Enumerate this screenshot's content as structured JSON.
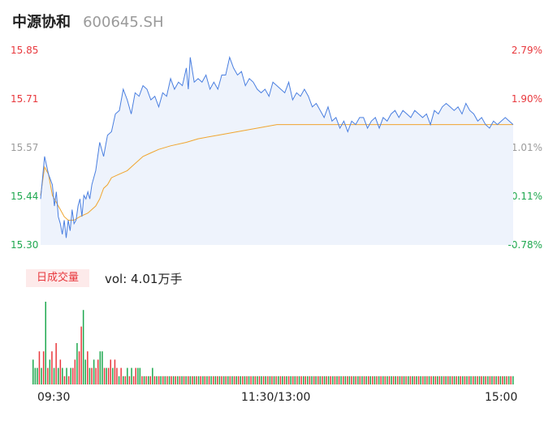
{
  "header": {
    "name": "中源协和",
    "code": "600645.SH"
  },
  "colors": {
    "price_line": "#4a7fe0",
    "avg_line": "#f0a52e",
    "area_fill": "#eef3fc",
    "up": "#e8383d",
    "down": "#1fa84f",
    "neutral": "#9b9b9b"
  },
  "y_axis": {
    "left_labels": [
      "15.85",
      "15.71",
      "15.57",
      "15.44",
      "15.30"
    ],
    "right_labels": [
      "2.79%",
      "1.90%",
      "1.01%",
      "0.11%",
      "-0.78%"
    ]
  },
  "volume": {
    "tag": "日成交量",
    "summary": "vol: 4.01万手"
  },
  "time_axis": [
    "09:30",
    "11:30/13:00",
    "15:00"
  ],
  "chart_data": {
    "type": "line",
    "xlabel": "",
    "ylabel": "",
    "ylim": [
      15.3,
      15.85
    ],
    "prev_close": 15.42,
    "x_range": [
      0,
      240
    ],
    "price": [
      [
        0,
        15.43
      ],
      [
        2,
        15.55
      ],
      [
        4,
        15.5
      ],
      [
        6,
        15.47
      ],
      [
        7,
        15.41
      ],
      [
        8,
        15.45
      ],
      [
        9,
        15.38
      ],
      [
        10,
        15.36
      ],
      [
        11,
        15.33
      ],
      [
        12,
        15.37
      ],
      [
        13,
        15.32
      ],
      [
        14,
        15.37
      ],
      [
        15,
        15.34
      ],
      [
        16,
        15.4
      ],
      [
        17,
        15.36
      ],
      [
        18,
        15.37
      ],
      [
        19,
        15.41
      ],
      [
        20,
        15.43
      ],
      [
        21,
        15.38
      ],
      [
        22,
        15.44
      ],
      [
        23,
        15.43
      ],
      [
        24,
        15.45
      ],
      [
        25,
        15.43
      ],
      [
        26,
        15.47
      ],
      [
        28,
        15.51
      ],
      [
        30,
        15.59
      ],
      [
        32,
        15.55
      ],
      [
        34,
        15.61
      ],
      [
        36,
        15.62
      ],
      [
        38,
        15.67
      ],
      [
        40,
        15.68
      ],
      [
        42,
        15.74
      ],
      [
        44,
        15.71
      ],
      [
        46,
        15.67
      ],
      [
        48,
        15.73
      ],
      [
        50,
        15.72
      ],
      [
        52,
        15.75
      ],
      [
        54,
        15.74
      ],
      [
        56,
        15.71
      ],
      [
        58,
        15.72
      ],
      [
        60,
        15.69
      ],
      [
        62,
        15.73
      ],
      [
        64,
        15.72
      ],
      [
        66,
        15.77
      ],
      [
        68,
        15.74
      ],
      [
        70,
        15.76
      ],
      [
        72,
        15.75
      ],
      [
        74,
        15.8
      ],
      [
        75,
        15.74
      ],
      [
        76,
        15.83
      ],
      [
        78,
        15.76
      ],
      [
        80,
        15.77
      ],
      [
        82,
        15.76
      ],
      [
        84,
        15.78
      ],
      [
        86,
        15.74
      ],
      [
        88,
        15.76
      ],
      [
        90,
        15.74
      ],
      [
        92,
        15.78
      ],
      [
        94,
        15.78
      ],
      [
        96,
        15.83
      ],
      [
        98,
        15.8
      ],
      [
        100,
        15.78
      ],
      [
        102,
        15.79
      ],
      [
        104,
        15.75
      ],
      [
        106,
        15.77
      ],
      [
        108,
        15.76
      ],
      [
        110,
        15.74
      ],
      [
        112,
        15.73
      ],
      [
        114,
        15.74
      ],
      [
        116,
        15.72
      ],
      [
        118,
        15.76
      ],
      [
        120,
        15.75
      ],
      [
        122,
        15.74
      ],
      [
        124,
        15.73
      ],
      [
        126,
        15.76
      ],
      [
        128,
        15.71
      ],
      [
        130,
        15.73
      ],
      [
        132,
        15.72
      ],
      [
        134,
        15.74
      ],
      [
        136,
        15.72
      ],
      [
        138,
        15.69
      ],
      [
        140,
        15.7
      ],
      [
        142,
        15.68
      ],
      [
        144,
        15.66
      ],
      [
        146,
        15.69
      ],
      [
        148,
        15.65
      ],
      [
        150,
        15.66
      ],
      [
        152,
        15.63
      ],
      [
        154,
        15.65
      ],
      [
        156,
        15.62
      ],
      [
        158,
        15.65
      ],
      [
        160,
        15.64
      ],
      [
        162,
        15.66
      ],
      [
        164,
        15.66
      ],
      [
        166,
        15.63
      ],
      [
        168,
        15.65
      ],
      [
        170,
        15.66
      ],
      [
        172,
        15.63
      ],
      [
        174,
        15.66
      ],
      [
        176,
        15.65
      ],
      [
        178,
        15.67
      ],
      [
        180,
        15.68
      ],
      [
        182,
        15.66
      ],
      [
        184,
        15.68
      ],
      [
        186,
        15.67
      ],
      [
        188,
        15.66
      ],
      [
        190,
        15.68
      ],
      [
        192,
        15.67
      ],
      [
        194,
        15.66
      ],
      [
        196,
        15.67
      ],
      [
        198,
        15.64
      ],
      [
        200,
        15.68
      ],
      [
        202,
        15.67
      ],
      [
        204,
        15.69
      ],
      [
        206,
        15.7
      ],
      [
        208,
        15.69
      ],
      [
        210,
        15.68
      ],
      [
        212,
        15.69
      ],
      [
        214,
        15.67
      ],
      [
        216,
        15.7
      ],
      [
        218,
        15.68
      ],
      [
        220,
        15.67
      ],
      [
        222,
        15.65
      ],
      [
        224,
        15.66
      ],
      [
        226,
        15.64
      ],
      [
        228,
        15.63
      ],
      [
        230,
        15.65
      ],
      [
        232,
        15.64
      ],
      [
        234,
        15.65
      ],
      [
        236,
        15.66
      ],
      [
        238,
        15.65
      ],
      [
        240,
        15.64
      ]
    ],
    "average": [
      [
        0,
        15.44
      ],
      [
        2,
        15.52
      ],
      [
        4,
        15.5
      ],
      [
        5,
        15.47
      ],
      [
        6,
        15.44
      ],
      [
        8,
        15.42
      ],
      [
        10,
        15.4
      ],
      [
        12,
        15.38
      ],
      [
        14,
        15.37
      ],
      [
        17,
        15.37
      ],
      [
        20,
        15.38
      ],
      [
        24,
        15.39
      ],
      [
        28,
        15.41
      ],
      [
        30,
        15.43
      ],
      [
        32,
        15.46
      ],
      [
        34,
        15.47
      ],
      [
        36,
        15.49
      ],
      [
        40,
        15.5
      ],
      [
        44,
        15.51
      ],
      [
        48,
        15.53
      ],
      [
        50,
        15.54
      ],
      [
        52,
        15.55
      ],
      [
        56,
        15.56
      ],
      [
        60,
        15.57
      ],
      [
        66,
        15.58
      ],
      [
        74,
        15.59
      ],
      [
        80,
        15.6
      ],
      [
        90,
        15.61
      ],
      [
        100,
        15.62
      ],
      [
        110,
        15.63
      ],
      [
        120,
        15.64
      ],
      [
        240,
        15.64
      ]
    ],
    "volume_bars": [
      [
        3,
        "down"
      ],
      [
        2,
        "down"
      ],
      [
        2,
        "down"
      ],
      [
        4,
        "up"
      ],
      [
        2,
        "down"
      ],
      [
        4,
        "up"
      ],
      [
        10,
        "down"
      ],
      [
        2,
        "up"
      ],
      [
        3,
        "down"
      ],
      [
        4,
        "up"
      ],
      [
        2,
        "down"
      ],
      [
        5,
        "up"
      ],
      [
        2,
        "down"
      ],
      [
        3,
        "up"
      ],
      [
        2,
        "down"
      ],
      [
        1,
        "up"
      ],
      [
        2,
        "down"
      ],
      [
        1,
        "up"
      ],
      [
        2,
        "down"
      ],
      [
        2,
        "up"
      ],
      [
        3,
        "up"
      ],
      [
        5,
        "down"
      ],
      [
        4,
        "up"
      ],
      [
        7,
        "up"
      ],
      [
        9,
        "down"
      ],
      [
        3,
        "down"
      ],
      [
        4,
        "up"
      ],
      [
        2,
        "down"
      ],
      [
        2,
        "up"
      ],
      [
        3,
        "down"
      ],
      [
        2,
        "up"
      ],
      [
        3,
        "up"
      ],
      [
        4,
        "down"
      ],
      [
        4,
        "down"
      ],
      [
        2,
        "up"
      ],
      [
        2,
        "down"
      ],
      [
        2,
        "up"
      ],
      [
        3,
        "up"
      ],
      [
        2,
        "down"
      ],
      [
        3,
        "up"
      ],
      [
        2,
        "up"
      ],
      [
        1,
        "down"
      ],
      [
        2,
        "up"
      ],
      [
        1,
        "down"
      ],
      [
        1,
        "up"
      ],
      [
        2,
        "down"
      ],
      [
        1,
        "up"
      ],
      [
        2,
        "down"
      ],
      [
        1,
        "up"
      ],
      [
        2,
        "up"
      ],
      [
        2,
        "down"
      ],
      [
        2,
        "down"
      ],
      [
        1,
        "up"
      ],
      [
        1,
        "down"
      ],
      [
        1,
        "up"
      ],
      [
        1,
        "down"
      ],
      [
        1,
        "up"
      ],
      [
        2,
        "down"
      ],
      [
        1,
        "up"
      ],
      [
        1,
        "down"
      ],
      [
        1,
        "up"
      ],
      [
        1,
        "down"
      ],
      [
        1,
        "up"
      ],
      [
        1,
        "down"
      ],
      [
        1,
        "up"
      ],
      [
        1,
        "down"
      ],
      [
        1,
        "up"
      ],
      [
        1,
        "down"
      ],
      [
        1,
        "up"
      ],
      [
        1,
        "down"
      ],
      [
        1,
        "up"
      ],
      [
        1,
        "down"
      ],
      [
        1,
        "up"
      ],
      [
        1,
        "down"
      ],
      [
        1,
        "up"
      ],
      [
        1,
        "down"
      ],
      [
        1,
        "up"
      ],
      [
        1,
        "down"
      ],
      [
        1,
        "up"
      ],
      [
        1,
        "down"
      ],
      [
        1,
        "up"
      ],
      [
        1,
        "down"
      ],
      [
        1,
        "up"
      ],
      [
        1,
        "down"
      ],
      [
        1,
        "up"
      ],
      [
        1,
        "down"
      ],
      [
        1,
        "up"
      ],
      [
        1,
        "down"
      ],
      [
        1,
        "up"
      ],
      [
        1,
        "down"
      ],
      [
        1,
        "up"
      ],
      [
        1,
        "down"
      ],
      [
        1,
        "up"
      ],
      [
        1,
        "down"
      ],
      [
        1,
        "up"
      ],
      [
        1,
        "down"
      ],
      [
        1,
        "up"
      ],
      [
        1,
        "down"
      ],
      [
        1,
        "up"
      ],
      [
        1,
        "down"
      ],
      [
        1,
        "up"
      ],
      [
        1,
        "down"
      ],
      [
        1,
        "up"
      ],
      [
        1,
        "down"
      ],
      [
        1,
        "up"
      ],
      [
        1,
        "down"
      ],
      [
        1,
        "up"
      ],
      [
        1,
        "down"
      ],
      [
        1,
        "up"
      ],
      [
        1,
        "down"
      ],
      [
        1,
        "up"
      ],
      [
        1,
        "down"
      ],
      [
        1,
        "up"
      ],
      [
        1,
        "down"
      ],
      [
        1,
        "up"
      ],
      [
        1,
        "down"
      ],
      [
        1,
        "up"
      ],
      [
        1,
        "down"
      ],
      [
        1,
        "up"
      ],
      [
        1,
        "down"
      ],
      [
        1,
        "up"
      ],
      [
        1,
        "down"
      ],
      [
        1,
        "up"
      ],
      [
        1,
        "down"
      ],
      [
        1,
        "up"
      ],
      [
        1,
        "down"
      ],
      [
        1,
        "up"
      ],
      [
        1,
        "down"
      ],
      [
        1,
        "up"
      ],
      [
        1,
        "down"
      ],
      [
        1,
        "up"
      ],
      [
        1,
        "down"
      ],
      [
        1,
        "up"
      ],
      [
        1,
        "down"
      ],
      [
        1,
        "up"
      ],
      [
        1,
        "down"
      ],
      [
        1,
        "up"
      ],
      [
        1,
        "down"
      ],
      [
        1,
        "up"
      ],
      [
        1,
        "down"
      ],
      [
        1,
        "up"
      ],
      [
        1,
        "down"
      ],
      [
        1,
        "up"
      ],
      [
        1,
        "down"
      ],
      [
        1,
        "up"
      ],
      [
        1,
        "down"
      ],
      [
        1,
        "up"
      ],
      [
        1,
        "down"
      ],
      [
        1,
        "up"
      ],
      [
        1,
        "down"
      ],
      [
        1,
        "up"
      ],
      [
        1,
        "down"
      ],
      [
        1,
        "up"
      ],
      [
        1,
        "down"
      ],
      [
        1,
        "up"
      ],
      [
        1,
        "down"
      ],
      [
        1,
        "up"
      ],
      [
        1,
        "down"
      ],
      [
        1,
        "up"
      ],
      [
        1,
        "down"
      ],
      [
        1,
        "up"
      ],
      [
        1,
        "down"
      ],
      [
        1,
        "up"
      ],
      [
        1,
        "down"
      ],
      [
        1,
        "up"
      ],
      [
        1,
        "down"
      ],
      [
        1,
        "up"
      ],
      [
        1,
        "down"
      ],
      [
        1,
        "up"
      ],
      [
        1,
        "down"
      ],
      [
        1,
        "up"
      ],
      [
        1,
        "down"
      ],
      [
        1,
        "up"
      ],
      [
        1,
        "down"
      ],
      [
        1,
        "up"
      ],
      [
        1,
        "down"
      ],
      [
        1,
        "up"
      ],
      [
        1,
        "down"
      ],
      [
        1,
        "up"
      ],
      [
        1,
        "down"
      ],
      [
        1,
        "up"
      ],
      [
        1,
        "down"
      ],
      [
        1,
        "up"
      ],
      [
        1,
        "down"
      ],
      [
        1,
        "up"
      ],
      [
        1,
        "down"
      ],
      [
        1,
        "up"
      ],
      [
        1,
        "down"
      ],
      [
        1,
        "up"
      ],
      [
        1,
        "down"
      ],
      [
        1,
        "up"
      ],
      [
        1,
        "down"
      ],
      [
        1,
        "up"
      ],
      [
        1,
        "down"
      ],
      [
        1,
        "up"
      ],
      [
        1,
        "down"
      ],
      [
        1,
        "up"
      ],
      [
        1,
        "down"
      ],
      [
        1,
        "up"
      ],
      [
        1,
        "down"
      ],
      [
        1,
        "up"
      ],
      [
        1,
        "down"
      ],
      [
        1,
        "up"
      ],
      [
        1,
        "down"
      ],
      [
        1,
        "up"
      ],
      [
        1,
        "down"
      ],
      [
        1,
        "up"
      ],
      [
        1,
        "down"
      ],
      [
        1,
        "up"
      ],
      [
        1,
        "down"
      ],
      [
        1,
        "up"
      ],
      [
        1,
        "down"
      ],
      [
        1,
        "up"
      ],
      [
        1,
        "down"
      ],
      [
        1,
        "up"
      ],
      [
        1,
        "down"
      ],
      [
        1,
        "up"
      ],
      [
        1,
        "down"
      ],
      [
        1,
        "up"
      ],
      [
        1,
        "down"
      ],
      [
        1,
        "up"
      ],
      [
        1,
        "down"
      ],
      [
        1,
        "up"
      ],
      [
        1,
        "down"
      ],
      [
        1,
        "up"
      ],
      [
        1,
        "down"
      ],
      [
        1,
        "up"
      ],
      [
        1,
        "down"
      ],
      [
        1,
        "up"
      ],
      [
        1,
        "down"
      ]
    ]
  }
}
